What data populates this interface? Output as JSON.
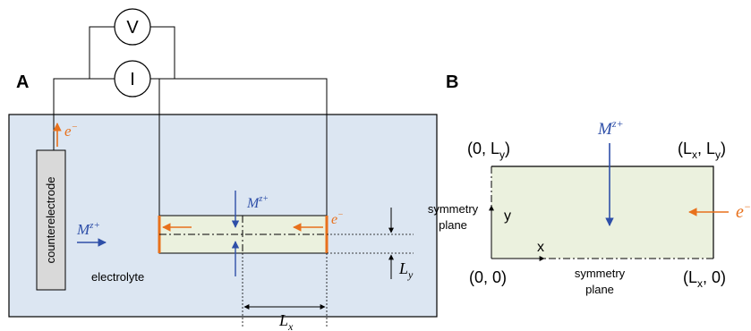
{
  "panel_a": {
    "label": "A",
    "voltmeter": "V",
    "ammeter": "I",
    "electron_label": "e",
    "electron_superscript": "−",
    "ion_label": "M",
    "ion_superscript": "z+",
    "counterelectrode": "counterelectrode",
    "electrolyte": "electrolyte",
    "dim_x": "L",
    "dim_x_sub": "x",
    "dim_y": "L",
    "dim_y_sub": "y"
  },
  "panel_b": {
    "label": "B",
    "ion_label": "M",
    "ion_superscript": "z+",
    "electron_label": "e",
    "electron_superscript": "−",
    "corner_tl": [
      "(0, L",
      "y",
      ")"
    ],
    "corner_tr": [
      "(L",
      "x",
      ", L",
      "y",
      ")"
    ],
    "corner_bl": "(0, 0)",
    "corner_br": [
      "(L",
      "x",
      ", 0)"
    ],
    "axis_x": "x",
    "axis_y": "y",
    "symmetry_left_line1": "symmetry",
    "symmetry_left_line2": "plane",
    "symmetry_bottom_line1": "symmetry",
    "symmetry_bottom_line2": "plane"
  },
  "colors": {
    "electrolyte_fill": "#dce6f2",
    "electrode_fill": "#ebf1de",
    "counterelectrode_fill": "#d9d9d9",
    "electron_color": "#e8711c",
    "ion_color": "#2e4fa8",
    "label_blue": "#3a5fb0"
  }
}
